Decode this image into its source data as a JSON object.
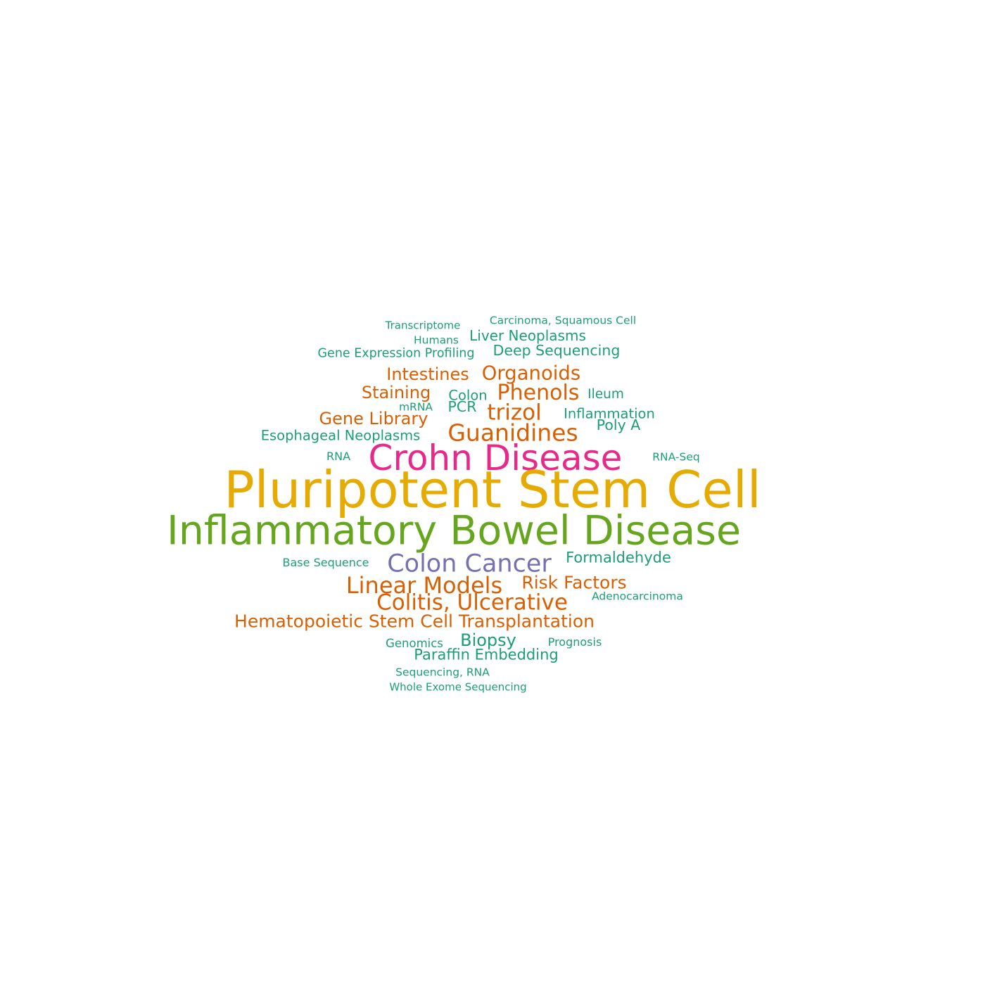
{
  "colors": {
    "teal": "#1b9e77",
    "orange": "#d95f02",
    "purple": "#7570b3",
    "magenta": "#e7298a",
    "green": "#66a61e",
    "gold": "#e6ab02"
  },
  "words": [
    {
      "id": "transcriptome",
      "text": "Transcriptome",
      "color": "teal"
    },
    {
      "id": "carcinoma-squamous-cell",
      "text": "Carcinoma, Squamous Cell",
      "color": "teal"
    },
    {
      "id": "liver-neoplasms",
      "text": "Liver Neoplasms",
      "color": "teal"
    },
    {
      "id": "humans",
      "text": "Humans",
      "color": "teal"
    },
    {
      "id": "gene-expression-profiling",
      "text": "Gene Expression Profiling",
      "color": "teal"
    },
    {
      "id": "deep-sequencing",
      "text": "Deep Sequencing",
      "color": "teal"
    },
    {
      "id": "intestines",
      "text": "Intestines",
      "color": "orange"
    },
    {
      "id": "organoids",
      "text": "Organoids",
      "color": "orange"
    },
    {
      "id": "staining",
      "text": "Staining",
      "color": "orange"
    },
    {
      "id": "colon",
      "text": "Colon",
      "color": "teal"
    },
    {
      "id": "phenols",
      "text": "Phenols",
      "color": "orange"
    },
    {
      "id": "ileum",
      "text": "Ileum",
      "color": "teal"
    },
    {
      "id": "mrna",
      "text": "mRNA",
      "color": "teal"
    },
    {
      "id": "pcr",
      "text": "PCR",
      "color": "teal"
    },
    {
      "id": "trizol",
      "text": "trizol",
      "color": "orange"
    },
    {
      "id": "inflammation",
      "text": "Inflammation",
      "color": "teal"
    },
    {
      "id": "gene-library",
      "text": "Gene Library",
      "color": "orange"
    },
    {
      "id": "poly-a",
      "text": "Poly A",
      "color": "teal"
    },
    {
      "id": "esophageal-neoplasms",
      "text": "Esophageal Neoplasms",
      "color": "teal"
    },
    {
      "id": "guanidines",
      "text": "Guanidines",
      "color": "orange"
    },
    {
      "id": "rna",
      "text": "RNA",
      "color": "teal"
    },
    {
      "id": "crohn-disease",
      "text": "Crohn Disease",
      "color": "magenta"
    },
    {
      "id": "rna-seq",
      "text": "RNA-Seq",
      "color": "teal"
    },
    {
      "id": "pluripotent-stem-cell",
      "text": "Pluripotent Stem Cell",
      "color": "gold"
    },
    {
      "id": "inflammatory-bowel-disease",
      "text": "Inflammatory Bowel Disease",
      "color": "green"
    },
    {
      "id": "base-sequence",
      "text": "Base Sequence",
      "color": "teal"
    },
    {
      "id": "colon-cancer",
      "text": "Colon Cancer",
      "color": "purple"
    },
    {
      "id": "formaldehyde",
      "text": "Formaldehyde",
      "color": "teal"
    },
    {
      "id": "linear-models",
      "text": "Linear Models",
      "color": "orange"
    },
    {
      "id": "risk-factors",
      "text": "Risk Factors",
      "color": "orange"
    },
    {
      "id": "colitis-ulcerative",
      "text": "Colitis, Ulcerative",
      "color": "orange"
    },
    {
      "id": "adenocarcinoma",
      "text": "Adenocarcinoma",
      "color": "teal"
    },
    {
      "id": "hematopoietic-stem-cell-transplantation",
      "text": "Hematopoietic Stem Cell Transplantation",
      "color": "orange"
    },
    {
      "id": "genomics",
      "text": "Genomics",
      "color": "teal"
    },
    {
      "id": "biopsy",
      "text": "Biopsy",
      "color": "teal"
    },
    {
      "id": "prognosis",
      "text": "Prognosis",
      "color": "teal"
    },
    {
      "id": "paraffin-embedding",
      "text": "Paraffin Embedding",
      "color": "teal"
    },
    {
      "id": "sequencing-rna",
      "text": "Sequencing, RNA",
      "color": "teal"
    },
    {
      "id": "whole-exome-sequencing",
      "text": "Whole Exome Sequencing",
      "color": "teal"
    }
  ]
}
